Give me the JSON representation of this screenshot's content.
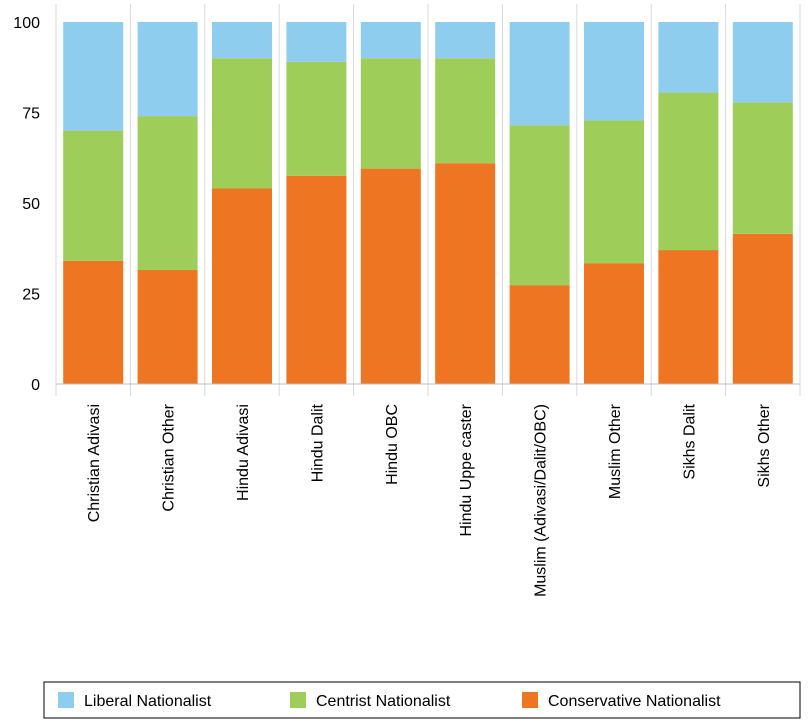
{
  "chart_data": {
    "type": "bar",
    "stacked": true,
    "categories": [
      "Christian Adivasi",
      "Christian Other",
      "Hindu Adivasi",
      "Hindu Dalit",
      "Hindu OBC",
      "Hindu Uppe caster",
      "Muslim (Adivasi/Dalit/OBC)",
      "Muslim Other",
      "Sikhs Dalit",
      "Sikhs Other"
    ],
    "series": [
      {
        "name": "Conservative Nationalist",
        "color": "#ee7623",
        "values": [
          34,
          31.5,
          54,
          57.5,
          59.5,
          61,
          27.3,
          33.3,
          37,
          41.5
        ]
      },
      {
        "name": "Centrist Nationalist",
        "color": "#9fcd5a",
        "values": [
          36,
          42.5,
          36,
          31.5,
          30.5,
          29,
          44.2,
          39.5,
          43.5,
          36.3
        ]
      },
      {
        "name": "Liberal Nationalist",
        "color": "#8ecdee",
        "values": [
          30,
          26,
          10,
          11,
          10,
          10,
          28.5,
          27.2,
          19.5,
          22.2
        ]
      }
    ],
    "yticks": [
      0,
      25,
      50,
      75,
      100
    ],
    "ylim": [
      0,
      100
    ],
    "grid": "vertical",
    "legend": {
      "position": "bottom",
      "order": [
        "Liberal Nationalist",
        "Centrist Nationalist",
        "Conservative Nationalist"
      ]
    }
  }
}
